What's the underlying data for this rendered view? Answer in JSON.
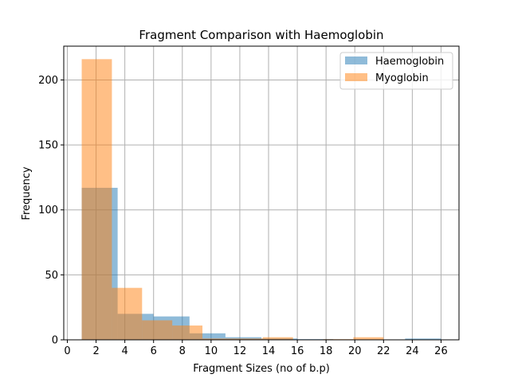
{
  "chart_data": {
    "type": "bar",
    "subtype": "overlapping-histogram",
    "title": "Fragment Comparison with Haemoglobin",
    "xlabel": "Fragment Sizes (no of b.p)",
    "ylabel": "Frequency",
    "xlim": [
      -0.25,
      27.25
    ],
    "ylim": [
      0,
      226
    ],
    "xticks": [
      "0",
      "2",
      "4",
      "6",
      "8",
      "10",
      "12",
      "14",
      "16",
      "18",
      "20",
      "22",
      "24",
      "26"
    ],
    "yticks": [
      "0",
      "50",
      "100",
      "150",
      "200"
    ],
    "grid": true,
    "legend_position": "top-right",
    "series": [
      {
        "name": "Haemoglobin",
        "color": "#1f77b4",
        "opacity": 0.5,
        "bins": [
          {
            "x0": 1.0,
            "x1": 3.5,
            "count": 117
          },
          {
            "x0": 3.5,
            "x1": 6.0,
            "count": 20
          },
          {
            "x0": 6.0,
            "x1": 8.5,
            "count": 18
          },
          {
            "x0": 8.5,
            "x1": 11.0,
            "count": 5
          },
          {
            "x0": 11.0,
            "x1": 13.5,
            "count": 2
          },
          {
            "x0": 13.5,
            "x1": 16.0,
            "count": 1
          },
          {
            "x0": 16.0,
            "x1": 18.5,
            "count": 0.5
          },
          {
            "x0": 18.5,
            "x1": 21.0,
            "count": 0
          },
          {
            "x0": 21.0,
            "x1": 23.5,
            "count": 0
          },
          {
            "x0": 23.5,
            "x1": 26.0,
            "count": 1
          }
        ]
      },
      {
        "name": "Myoglobin",
        "color": "#ff7f0e",
        "opacity": 0.5,
        "bins": [
          {
            "x0": 1.0,
            "x1": 3.1,
            "count": 216
          },
          {
            "x0": 3.1,
            "x1": 5.2,
            "count": 40
          },
          {
            "x0": 5.2,
            "x1": 7.3,
            "count": 15
          },
          {
            "x0": 7.3,
            "x1": 9.4,
            "count": 11
          },
          {
            "x0": 9.4,
            "x1": 11.5,
            "count": 1
          },
          {
            "x0": 11.5,
            "x1": 13.6,
            "count": 1
          },
          {
            "x0": 13.6,
            "x1": 15.7,
            "count": 2
          },
          {
            "x0": 15.7,
            "x1": 17.8,
            "count": 0
          },
          {
            "x0": 17.8,
            "x1": 19.9,
            "count": 0.5
          },
          {
            "x0": 19.9,
            "x1": 22.0,
            "count": 2
          }
        ]
      }
    ]
  }
}
